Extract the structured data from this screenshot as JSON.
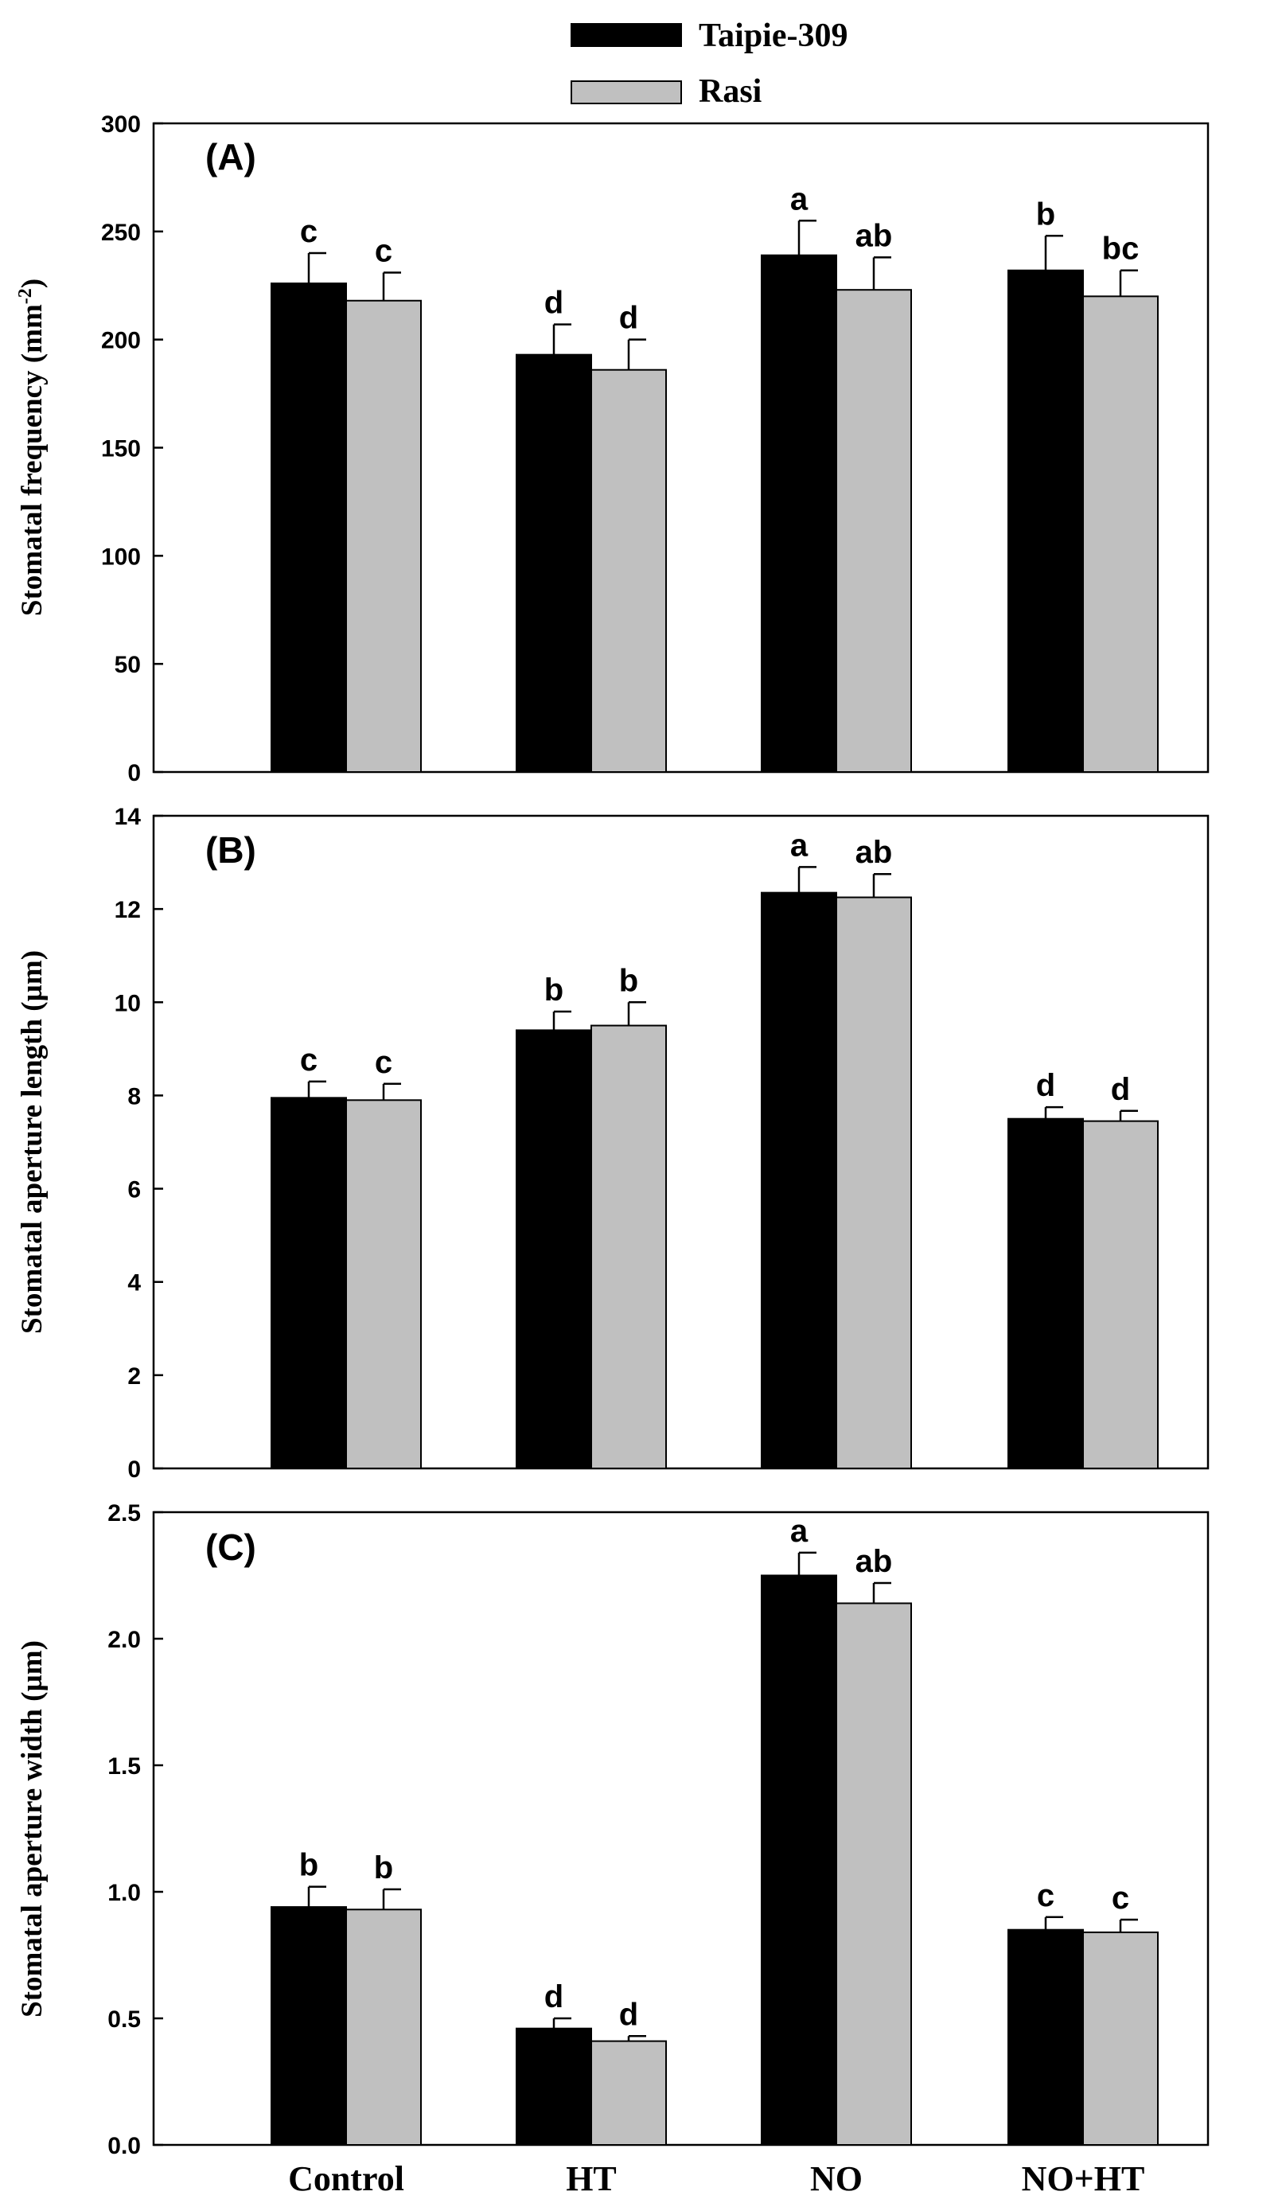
{
  "legend": [
    {
      "label": "Taipie-309",
      "color": "#000000"
    },
    {
      "label": "Rasi",
      "color": "#c0c0c0"
    }
  ],
  "chart_data": [
    {
      "type": "bar",
      "panel_label": "(A)",
      "categories": [
        "Control",
        "HT",
        "NO",
        "NO+HT"
      ],
      "ylabel": "Stomatal frequency (mm",
      "ylabel_sup": "-2",
      "ylabel_end": ")",
      "ylim": [
        0,
        300
      ],
      "yticks": [
        0,
        50,
        100,
        150,
        200,
        250,
        300
      ],
      "ytick_labels": [
        "0",
        "50",
        "100",
        "150",
        "200",
        "250",
        "300"
      ],
      "series": [
        {
          "name": "Taipie-309",
          "values": [
            226,
            193,
            239,
            232
          ],
          "errors": [
            14,
            14,
            16,
            16
          ],
          "letters": [
            "c",
            "d",
            "a",
            "b"
          ]
        },
        {
          "name": "Rasi",
          "values": [
            218,
            186,
            223,
            220
          ],
          "errors": [
            13,
            14,
            15,
            12
          ],
          "letters": [
            "c",
            "d",
            "ab",
            "bc"
          ]
        }
      ]
    },
    {
      "type": "bar",
      "panel_label": "(B)",
      "categories": [
        "Control",
        "HT",
        "NO",
        "NO+HT"
      ],
      "ylabel": "Stomatal aperture length (µm)",
      "ylim": [
        0,
        14
      ],
      "yticks": [
        0,
        2,
        4,
        6,
        8,
        10,
        12,
        14
      ],
      "ytick_labels": [
        "0",
        "2",
        "4",
        "6",
        "8",
        "10",
        "12",
        "14"
      ],
      "series": [
        {
          "name": "Taipie-309",
          "values": [
            7.95,
            9.4,
            12.35,
            7.5
          ],
          "errors": [
            0.35,
            0.4,
            0.55,
            0.25
          ],
          "letters": [
            "c",
            "b",
            "a",
            "d"
          ]
        },
        {
          "name": "Rasi",
          "values": [
            7.9,
            9.5,
            12.25,
            7.45
          ],
          "errors": [
            0.35,
            0.5,
            0.5,
            0.22
          ],
          "letters": [
            "c",
            "b",
            "ab",
            "d"
          ]
        }
      ]
    },
    {
      "type": "bar",
      "panel_label": "(C)",
      "categories": [
        "Control",
        "HT",
        "NO",
        "NO+HT"
      ],
      "ylabel": "Stomatal aperture width (µm)",
      "ylim": [
        0,
        2.5
      ],
      "yticks": [
        0,
        0.5,
        1,
        1.5,
        2,
        2.5
      ],
      "ytick_labels": [
        "0.0",
        "0.5",
        "1.0",
        "1.5",
        "2.0",
        "2.5"
      ],
      "series": [
        {
          "name": "Taipie-309",
          "values": [
            0.94,
            0.46,
            2.25,
            0.85
          ],
          "errors": [
            0.08,
            0.04,
            0.09,
            0.05
          ],
          "letters": [
            "b",
            "d",
            "a",
            "c"
          ]
        },
        {
          "name": "Rasi",
          "values": [
            0.93,
            0.41,
            2.14,
            0.84
          ],
          "errors": [
            0.08,
            0.02,
            0.08,
            0.05
          ],
          "letters": [
            "b",
            "d",
            "ab",
            "c"
          ]
        }
      ]
    }
  ]
}
